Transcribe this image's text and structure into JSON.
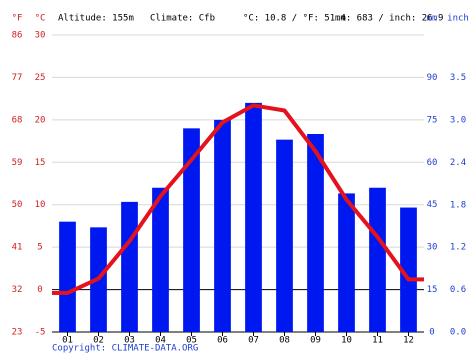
{
  "chart_data": {
    "type": "bar",
    "header": {
      "altitude": "Altitude: 155m",
      "climate": "Climate: Cfb",
      "temperature": "°C: 10.8 / °F: 51.4",
      "precipitation": "mm: 683 / inch: 26.9"
    },
    "copyright": "Copyright: CLIMATE-DATA.ORG",
    "categories": [
      "01",
      "02",
      "03",
      "04",
      "05",
      "06",
      "07",
      "08",
      "09",
      "10",
      "11",
      "12"
    ],
    "y_label": "°C",
    "ylim": [
      -5,
      30
    ],
    "yticks": [
      -5,
      0,
      5,
      10,
      15,
      20,
      25,
      30
    ],
    "f_axis": {
      "label": "°F",
      "lim": [
        23,
        86
      ],
      "ticks": [
        23,
        32,
        41,
        50,
        59,
        68,
        77,
        86
      ]
    },
    "y2_label": "mm",
    "y2lim": [
      0,
      105
    ],
    "y2ticks": [
      0,
      15,
      30,
      45,
      60,
      75,
      90
    ],
    "inch_axis": {
      "label": "inch",
      "lim": [
        0,
        4.134
      ],
      "ticks": [
        {
          "value": 0,
          "label": "0.0"
        },
        {
          "value": 0.59,
          "label": "0.6"
        },
        {
          "value": 1.18,
          "label": "1.2"
        },
        {
          "value": 1.77,
          "label": "1.8"
        },
        {
          "value": 2.36,
          "label": "2.4"
        },
        {
          "value": 2.95,
          "label": "3.0"
        },
        {
          "value": 3.54,
          "label": "3.5"
        }
      ]
    },
    "grid": true,
    "series": [
      {
        "type": "bar",
        "axis": "y2",
        "color": "#0018f0",
        "values": [
          39,
          37,
          46,
          51,
          72,
          75,
          81,
          68,
          70,
          49,
          51,
          44
        ]
      },
      {
        "type": "line",
        "color": "#e4121c",
        "values": [
          -0.4,
          1.3,
          5.7,
          11.0,
          15.3,
          19.7,
          21.7,
          21.1,
          16.3,
          10.6,
          6.2,
          1.2
        ]
      }
    ]
  }
}
